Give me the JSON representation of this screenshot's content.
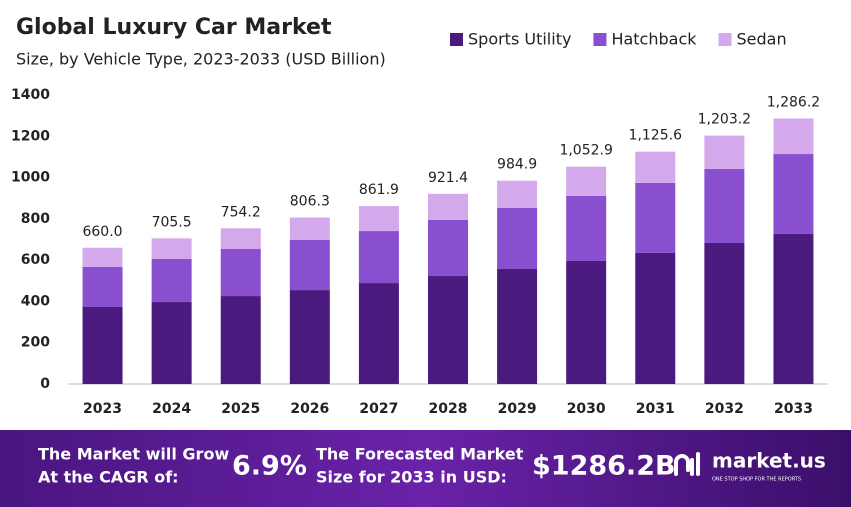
{
  "chart_data": {
    "type": "stacked_bar",
    "title": "Global Luxury Car Market",
    "subtitle": "Size, by Vehicle Type, 2023-2033 (USD Billion)",
    "categories": [
      "2023",
      "2024",
      "2025",
      "2026",
      "2027",
      "2028",
      "2029",
      "2030",
      "2031",
      "2032",
      "2033"
    ],
    "series": [
      {
        "name": "Sports Utility",
        "color": "#4b1a7e",
        "values": [
          373,
          397,
          426,
          455,
          489,
          523,
          557,
          596,
          635,
          683,
          727
        ]
      },
      {
        "name": "Hatchback",
        "color": "#8a4fcf",
        "values": [
          194,
          209,
          228,
          243,
          252,
          272,
          296,
          315,
          339,
          359,
          387
        ]
      },
      {
        "name": "Sedan",
        "color": "#d4a9ec",
        "values": [
          93,
          99.5,
          100.2,
          108.3,
          120.9,
          126.4,
          131.9,
          141.9,
          151.6,
          161.2,
          172.2
        ]
      }
    ],
    "totals": {
      "values": [
        660.0,
        705.5,
        754.2,
        806.3,
        861.9,
        921.4,
        984.9,
        1052.9,
        1125.6,
        1203.2,
        1286.2
      ],
      "value_labels": [
        "660.0",
        "705.5",
        "754.2",
        "806.3",
        "861.9",
        "921.4",
        "984.9",
        "1,052.9",
        "1,125.6",
        "1,203.2",
        "1,286.2"
      ]
    },
    "ylim": [
      0,
      1400
    ],
    "yticks": [
      0,
      200,
      400,
      600,
      800,
      1000,
      1200,
      1400
    ],
    "legend": "top-right"
  },
  "footer": {
    "cagr_text": [
      "The Market will Grow",
      "At the CAGR of:"
    ],
    "cagr": "6.9%",
    "forecast_text": [
      "The Forecasted Market",
      "Size for 2033 in USD:"
    ],
    "forecast": "$1286.2B",
    "brand": "market.us",
    "tagline": "ONE STOP SHOP FOR THE REPORTS"
  }
}
